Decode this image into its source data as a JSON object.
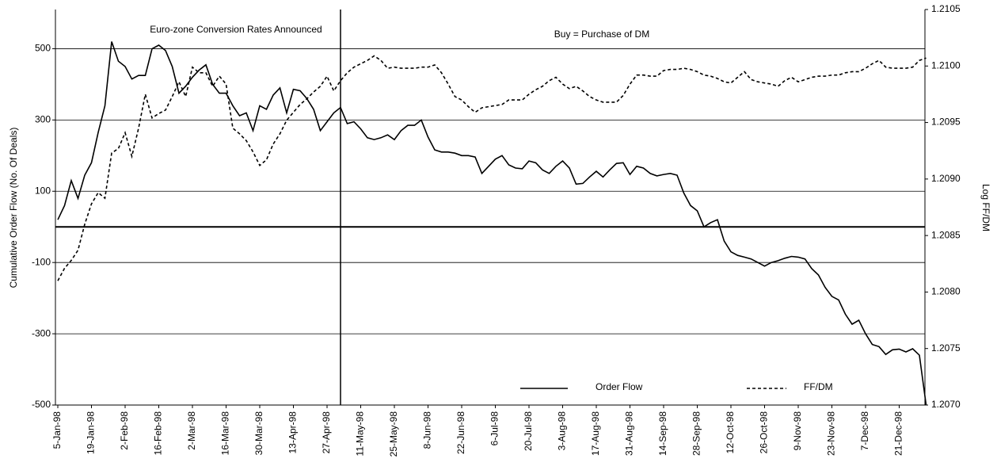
{
  "chart_data": {
    "type": "line",
    "annotations": [
      "Euro-zone Conversion Rates Announced",
      "Buy = Purchase of DM"
    ],
    "y_label": "Cumulative Order Flow  (No. Of Deals)",
    "y2_label": "Log FF/DM",
    "categories": [
      "5-Jan-98",
      null,
      null,
      null,
      null,
      "19-Jan-98",
      null,
      null,
      null,
      null,
      "2-Feb-98",
      null,
      null,
      null,
      null,
      "16-Feb-98",
      null,
      null,
      null,
      null,
      "2-Mar-98",
      null,
      null,
      null,
      null,
      "16-Mar-98",
      null,
      null,
      null,
      null,
      "30-Mar-98",
      null,
      null,
      null,
      null,
      "13-Apr-98",
      null,
      null,
      null,
      null,
      "27-Apr-98",
      null,
      null,
      null,
      null,
      "11-May-98",
      null,
      null,
      null,
      null,
      "25-May-98",
      null,
      null,
      null,
      null,
      "8-Jun-98",
      null,
      null,
      null,
      null,
      "22-Jun-98",
      null,
      null,
      null,
      null,
      "6-Jul-98",
      null,
      null,
      null,
      null,
      "20-Jul-98",
      null,
      null,
      null,
      null,
      "3-Aug-98",
      null,
      null,
      null,
      null,
      "17-Aug-98",
      null,
      null,
      null,
      null,
      "31-Aug-98",
      null,
      null,
      null,
      null,
      "14-Sep-98",
      null,
      null,
      null,
      null,
      "28-Sep-98",
      null,
      null,
      null,
      null,
      "12-Oct-98",
      null,
      null,
      null,
      null,
      "26-Oct-98",
      null,
      null,
      null,
      null,
      "9-Nov-98",
      null,
      null,
      null,
      null,
      "23-Nov-98",
      null,
      null,
      null,
      null,
      "7-Dec-98",
      null,
      null,
      null,
      null,
      "21-Dec-98",
      null,
      null,
      null,
      null
    ],
    "series": [
      {
        "name": "Order Flow",
        "color": "#000000",
        "style": "solid",
        "axis": "y",
        "values": [
          20,
          60,
          130,
          80,
          145,
          180,
          265,
          340,
          520,
          465,
          450,
          415,
          425,
          425,
          500,
          510,
          495,
          450,
          375,
          395,
          420,
          440,
          455,
          400,
          375,
          375,
          340,
          312,
          320,
          270,
          340,
          330,
          370,
          390,
          320,
          386,
          382,
          360,
          330,
          270,
          295,
          320,
          335,
          290,
          295,
          275,
          250,
          245,
          250,
          258,
          245,
          270,
          285,
          285,
          300,
          252,
          216,
          210,
          210,
          207,
          200,
          200,
          196,
          150,
          170,
          190,
          200,
          174,
          165,
          163,
          185,
          180,
          160,
          150,
          170,
          185,
          165,
          120,
          122,
          140,
          156,
          140,
          160,
          178,
          180,
          147,
          170,
          165,
          150,
          143,
          147,
          150,
          145,
          95,
          60,
          45,
          0,
          12,
          20,
          -40,
          -70,
          -80,
          -85,
          -90,
          -100,
          -110,
          -100,
          -95,
          -88,
          -83,
          -85,
          -90,
          -117,
          -135,
          -170,
          -195,
          -205,
          -245,
          -273,
          -262,
          -300,
          -330,
          -336,
          -358,
          -345,
          -343,
          -351,
          -342,
          -360,
          -500
        ]
      },
      {
        "name": "FF/DM",
        "color": "#000000",
        "style": "dashed",
        "axis": "y2",
        "values": [
          1.2081,
          1.20821,
          1.20828,
          1.20837,
          1.2086,
          1.20878,
          1.20888,
          1.20883,
          1.20923,
          1.20927,
          1.20941,
          1.2092,
          1.20945,
          1.20975,
          1.20954,
          1.20958,
          1.20961,
          1.20973,
          1.20986,
          1.20973,
          1.20999,
          1.20994,
          1.20994,
          1.20982,
          1.20991,
          1.20984,
          1.20945,
          1.2094,
          1.20934,
          1.20924,
          1.20912,
          1.20917,
          1.20931,
          1.2094,
          1.20952,
          1.20959,
          1.20966,
          1.20971,
          1.20977,
          1.20982,
          1.20991,
          1.20978,
          1.20987,
          1.20994,
          1.20999,
          1.21002,
          1.21005,
          1.21009,
          1.21005,
          1.20998,
          1.20999,
          1.20998,
          1.20998,
          1.20998,
          1.20999,
          1.20999,
          1.21001,
          1.20994,
          1.20984,
          1.20973,
          1.2097,
          1.20964,
          1.20959,
          1.20963,
          1.20964,
          1.20965,
          1.20966,
          1.2097,
          1.2097,
          1.2097,
          1.20975,
          1.20979,
          1.20982,
          1.20987,
          1.2099,
          1.20984,
          1.2098,
          1.20982,
          1.20978,
          1.20973,
          1.2097,
          1.20968,
          1.20968,
          1.20968,
          1.20974,
          1.20984,
          1.20992,
          1.20992,
          1.20991,
          1.20991,
          1.20996,
          1.20997,
          1.20997,
          1.20998,
          1.20997,
          1.20995,
          1.20992,
          1.20991,
          1.20989,
          1.20986,
          1.20985,
          1.2099,
          1.20995,
          1.20988,
          1.20986,
          1.20985,
          1.20984,
          1.20982,
          1.20987,
          1.2099,
          1.20986,
          1.20988,
          1.2099,
          1.20991,
          1.20991,
          1.20992,
          1.20992,
          1.20994,
          1.20995,
          1.20995,
          1.20998,
          1.21002,
          1.21005,
          1.20999,
          1.20998,
          1.20998,
          1.20998,
          1.20999,
          1.21005,
          1.21007
        ]
      }
    ],
    "ylim": [
      -500,
      610
    ],
    "yticks": [
      -500,
      -300,
      -100,
      100,
      300,
      500
    ],
    "y2lim": [
      1.207,
      1.2105
    ],
    "y2ticks": [
      {
        "value": 1.207,
        "label": "1.2070"
      },
      1.2075,
      {
        "value": 1.208,
        "label": "1.2080"
      },
      1.2085,
      {
        "value": 1.209,
        "label": "1.2090"
      },
      1.2095,
      {
        "value": 1.21,
        "label": "1.2100"
      },
      1.2105
    ],
    "grid": true
  }
}
